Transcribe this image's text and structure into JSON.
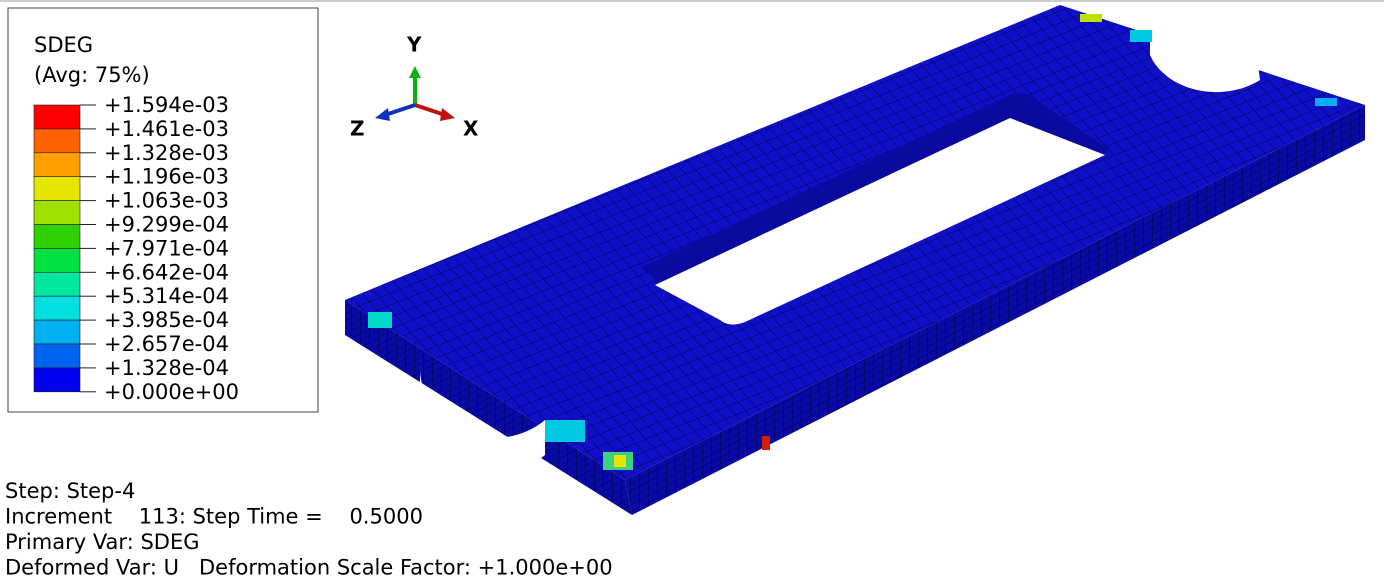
{
  "legend": {
    "title": "SDEG",
    "subtitle": "(Avg: 75%)",
    "labels": [
      "+1.594e-03",
      "+1.461e-03",
      "+1.328e-03",
      "+1.196e-03",
      "+1.063e-03",
      "+9.299e-04",
      "+7.971e-04",
      "+6.642e-04",
      "+5.314e-04",
      "+3.985e-04",
      "+2.657e-04",
      "+1.328e-04",
      "+0.000e+00"
    ],
    "colors": [
      "#ff0000",
      "#ff6000",
      "#ffa000",
      "#e6e600",
      "#a0e000",
      "#30d000",
      "#00e040",
      "#00e8a0",
      "#00e0e0",
      "#00b0f0",
      "#0064f0",
      "#0000f0"
    ]
  },
  "triad": {
    "y": "Y",
    "z": "Z",
    "x": "X"
  },
  "info": [
    "Step: Step-4",
    "Increment    113: Step Time =    0.5000",
    "Primary Var: SDEG",
    "Deformed Var: U   Deformation Scale Factor: +1.000e+00"
  ]
}
